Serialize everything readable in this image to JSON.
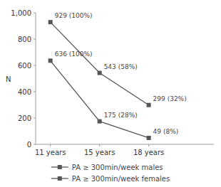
{
  "chart_data": {
    "type": "line",
    "categories": [
      "11 years",
      "15 years",
      "18 years"
    ],
    "series": [
      {
        "name": "PA ≥ 300min/week males",
        "color": "#555555",
        "marker": "square",
        "values": [
          929,
          543,
          299
        ],
        "value_labels": [
          "929 (100%)",
          "543 (58%)",
          "299 (32%)"
        ]
      },
      {
        "name": "PA ≥ 300min/week females",
        "color": "#555555",
        "marker": "square",
        "values": [
          636,
          175,
          49
        ],
        "value_labels": [
          "636 (100%)",
          "175 (28%)",
          "49 (8%)"
        ]
      }
    ],
    "ylabel": "N",
    "ylim": [
      0,
      1000
    ],
    "yticks": [
      0,
      200,
      400,
      600,
      800,
      {
        "value": 1000,
        "label": "1,000"
      }
    ],
    "data_labels": true,
    "grid": false,
    "legend": "bottom"
  }
}
